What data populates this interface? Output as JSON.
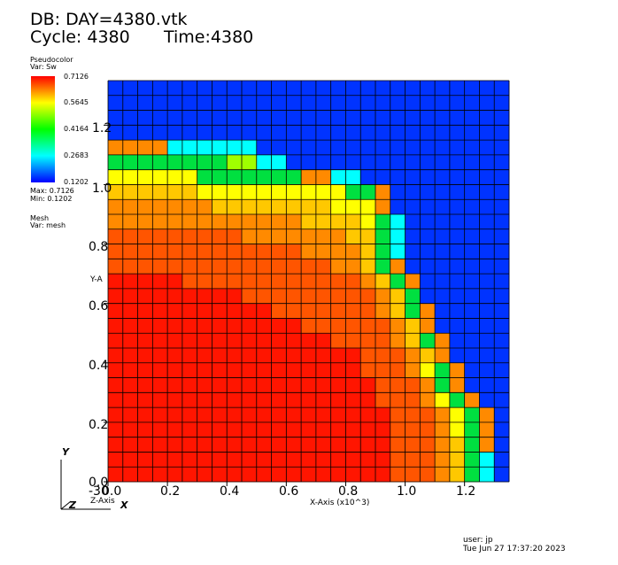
{
  "header": {
    "db_line": "DB: DAY=4380.vtk",
    "cycle_line": "Cycle: 4380",
    "time_line": "Time:4380"
  },
  "legend": {
    "plot_type": "Pseudocolor",
    "var_line": "Var: Sw",
    "ticks": [
      "0.7126",
      "0.5645",
      "0.4164",
      "0.2683",
      "0.1202"
    ],
    "max_line": "Max:  0.7126",
    "min_line": "Min:  0.1202",
    "mesh_title": "Mesh",
    "mesh_var": "Var: mesh",
    "colors": [
      "#ff0000",
      "#ffff00",
      "#00ff00",
      "#00ffff",
      "#0000ff"
    ]
  },
  "axes": {
    "x_ticks": [
      "0.0",
      "0.2",
      "0.4",
      "0.6",
      "0.8",
      "1.0",
      "1.2"
    ],
    "y_ticks": [
      "0.0",
      "0.2",
      "0.4",
      "0.6",
      "0.8",
      "1.0",
      "1.2"
    ],
    "x_label": "X-Axis (x10^3)",
    "y_label": "Y-A",
    "z_label": "Z-Axis",
    "x_origin_label": "-30",
    "triad_y": "Y",
    "triad_z": "Z",
    "triad_x": "X"
  },
  "footer": {
    "user": "user: jp",
    "timestamp": "Tue Jun 27 17:37:20 2023"
  },
  "chart_data": {
    "type": "heatmap",
    "title": "DB: DAY=4380.vtk",
    "xlabel": "X-Axis (x10^3)",
    "ylabel": "Y-A",
    "xlim": [
      0.0,
      1.35
    ],
    "ylim": [
      0.0,
      1.35
    ],
    "grid": true,
    "colorbar": {
      "var": "Sw",
      "min": 0.1202,
      "max": 0.7126
    },
    "grid_size": [
      27,
      27
    ],
    "rows": [
      "yyyyyyyyyyyyyyyyyyyyyyyyyyy",
      "yyyyyyyyyyyyyyyyyyyyyyyyyyy",
      "yyyyyyyyyyyyyyyyyyyyyyyyyyy",
      "yyyyyyyyyyyyyyyyyyyyyyyyyyy",
      "ccccxxxxxxyyyyyyyyyyyyyyyyy",
      "ggggggggvvxxyyyyyyyyyyyyyyy",
      "eeeeeegggggggccxxyyyyyyyyyy",
      "ddddddeeeeeeeeeeggcyyyyyyyy",
      "cccccccddddddddeeecyyyyyyyy",
      "cccccccccccccddddegxyyyyyyy",
      "bbbbbbbbbcccccccddgxyyyyyyy",
      "bbbbbbbbbbbbbccccdgxyyyyyyy",
      "bbbbbbbbbbbbbbbccdgcyyyyyyy",
      "aaaaabbbbbbbbbbbbcdgcyyyyyy",
      "aaaaaaaaabbbbbbbbbcdgyyyyyy",
      "aaaaaaaaaaabbbbbbbcdgcyyyyy",
      "aaaaaaaaaaaaabbbbbbcdcyyyyy",
      "aaaaaaaaaaaaaaabbbbcdgcyyyy",
      "aaaaaaaaaaaaaaaaabbbcdcyyyy",
      "aaaaaaaaaaaaaaaaabbbcegcyyy",
      "aaaaaaaaaaaaaaaaaabbbcgcyyy",
      "aaaaaaaaaaaaaaaaaabbbcegcyy",
      "aaaaaaaaaaaaaaaaaaabbbcegcy",
      "aaaaaaaaaaaaaaaaaaabbbcegcy",
      "aaaaaaaaaaaaaaaaaaabbbcdgcy",
      "aaaaaaaaaaaaaaaaaaabbbcdgxy",
      "aaaaaaaaaaaaaaaaaaabbbcdgxy"
    ],
    "palette": {
      "a": "#ff1500",
      "b": "#ff5500",
      "c": "#ff8a00",
      "d": "#ffc800",
      "e": "#ffff00",
      "v": "#a0ff00",
      "g": "#00e040",
      "x": "#00ffff",
      "y": "#0033ff"
    }
  }
}
